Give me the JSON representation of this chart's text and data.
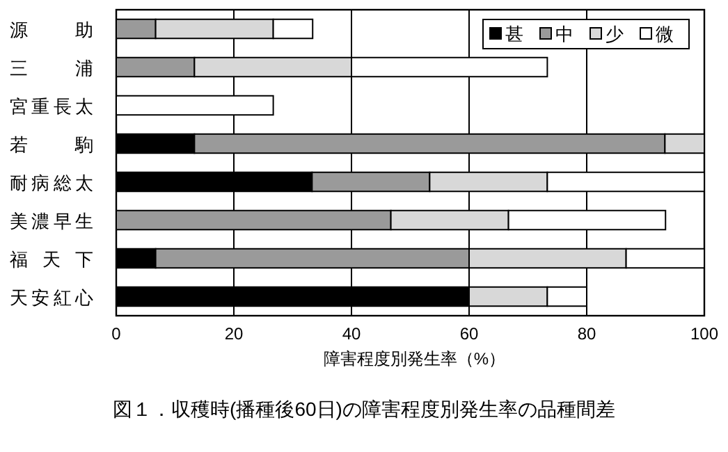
{
  "chart_data": {
    "type": "bar",
    "orientation": "horizontal",
    "stacked": true,
    "title": "図１．収穫時(播種後60日)の障害程度別発生率の品種間差",
    "xlabel": "障害程度別発生率（%）",
    "categories": [
      "源助",
      "三浦",
      "宮重長太",
      "若駒",
      "耐病総太",
      "美濃早生",
      "福天下",
      "天安紅心"
    ],
    "series": [
      {
        "name": "甚",
        "color": "#000000",
        "values": [
          0,
          0,
          0,
          13.3,
          33.3,
          0,
          6.7,
          60
        ]
      },
      {
        "name": "中",
        "color": "#9a9a9a",
        "values": [
          6.7,
          13.3,
          0,
          80,
          20,
          46.7,
          53.3,
          0
        ]
      },
      {
        "name": "少",
        "color": "#d8d8d8",
        "values": [
          20,
          26.7,
          0,
          6.7,
          20,
          20,
          26.7,
          13.3
        ]
      },
      {
        "name": "微",
        "color": "#ffffff",
        "values": [
          6.7,
          33.3,
          26.7,
          0,
          26.7,
          26.7,
          13.3,
          6.7
        ]
      }
    ],
    "xlim": [
      0,
      100
    ],
    "xticks": [
      0,
      20,
      40,
      60,
      80,
      100
    ],
    "grid": "x",
    "legend": "top right"
  }
}
